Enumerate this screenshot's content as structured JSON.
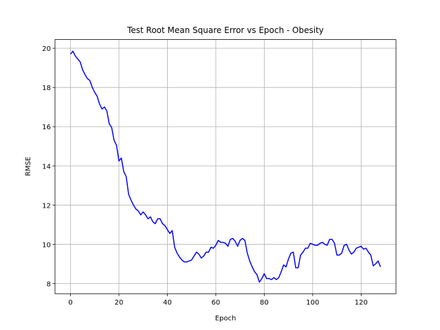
{
  "chart_data": {
    "type": "line",
    "title": "Test Root Mean Square Error vs Epoch - Obesity",
    "x_label": "Epoch",
    "y_label": "RMSE",
    "x": [
      0,
      1,
      2,
      3,
      4,
      5,
      6,
      7,
      8,
      9,
      10,
      11,
      12,
      13,
      14,
      15,
      16,
      17,
      18,
      19,
      20,
      21,
      22,
      23,
      24,
      25,
      26,
      27,
      28,
      29,
      30,
      31,
      32,
      33,
      34,
      35,
      36,
      37,
      38,
      39,
      40,
      41,
      42,
      43,
      44,
      45,
      46,
      47,
      48,
      49,
      50,
      51,
      52,
      53,
      54,
      55,
      56,
      57,
      58,
      59,
      60,
      61,
      62,
      63,
      64,
      65,
      66,
      67,
      68,
      69,
      70,
      71,
      72,
      73,
      74,
      75,
      76,
      77,
      78,
      79,
      80,
      81,
      82,
      83,
      84,
      85,
      86,
      87,
      88,
      89,
      90,
      91,
      92,
      93,
      94,
      95,
      96,
      97,
      98,
      99,
      100,
      101,
      102,
      103,
      104,
      105,
      106,
      107,
      108,
      109,
      110,
      111,
      112,
      113,
      114,
      115,
      116,
      117,
      118,
      119,
      120,
      121,
      122,
      123,
      124,
      125,
      126,
      127,
      128
    ],
    "series": [
      {
        "name": "RMSE",
        "color": "#0000ff",
        "values": [
          19.7,
          19.85,
          19.6,
          19.45,
          19.3,
          18.9,
          18.65,
          18.45,
          18.35,
          18.0,
          17.75,
          17.55,
          17.15,
          16.9,
          17.0,
          16.8,
          16.15,
          15.95,
          15.3,
          15.05,
          14.25,
          14.4,
          13.7,
          13.45,
          12.55,
          12.25,
          12.0,
          11.8,
          11.7,
          11.5,
          11.65,
          11.5,
          11.3,
          11.4,
          11.15,
          11.05,
          11.3,
          11.3,
          11.05,
          10.95,
          10.75,
          10.55,
          10.7,
          9.85,
          9.55,
          9.35,
          9.2,
          9.1,
          9.1,
          9.15,
          9.2,
          9.4,
          9.6,
          9.5,
          9.3,
          9.4,
          9.6,
          9.6,
          9.85,
          9.8,
          9.95,
          10.2,
          10.1,
          10.1,
          10.05,
          9.9,
          10.25,
          10.3,
          10.15,
          9.9,
          10.2,
          10.3,
          10.2,
          9.55,
          9.15,
          8.85,
          8.6,
          8.45,
          8.07,
          8.25,
          8.5,
          8.25,
          8.25,
          8.2,
          8.3,
          8.2,
          8.3,
          8.6,
          8.95,
          8.85,
          9.25,
          9.55,
          9.6,
          8.8,
          8.8,
          9.45,
          9.6,
          9.8,
          9.8,
          10.05,
          10.0,
          9.95,
          9.95,
          10.05,
          10.1,
          10.0,
          9.95,
          10.25,
          10.25,
          10.05,
          9.45,
          9.45,
          9.55,
          9.95,
          10.0,
          9.7,
          9.5,
          9.6,
          9.8,
          9.85,
          9.9,
          9.75,
          9.8,
          9.6,
          9.45,
          8.9,
          9.0,
          9.15,
          8.85
        ]
      }
    ],
    "xlim": [
      -6.4,
      134.4
    ],
    "xticks": [
      0,
      20,
      40,
      60,
      80,
      100,
      120
    ],
    "ylim": [
      7.48,
      20.44
    ],
    "yticks": [
      8,
      10,
      12,
      14,
      16,
      18,
      20
    ],
    "grid": true
  }
}
